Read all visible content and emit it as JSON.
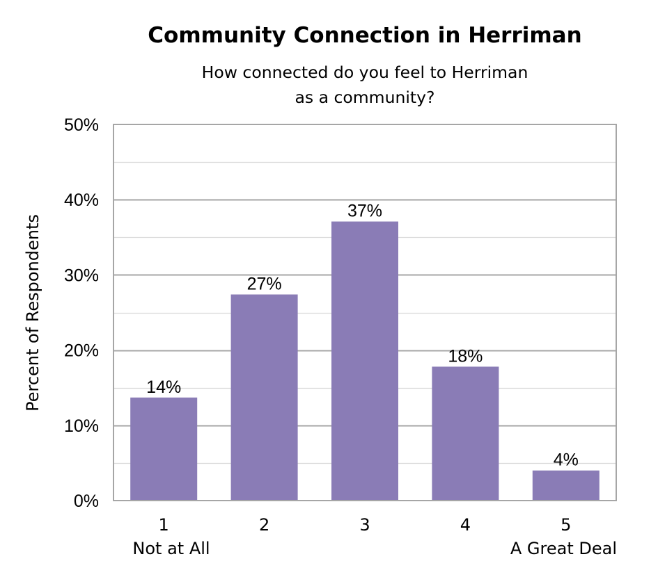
{
  "chart_data": {
    "type": "bar",
    "title": "Community Connection in Herriman",
    "subtitle_lines": [
      "How connected do you feel to Herriman",
      "as a community?"
    ],
    "ylabel": "Percent of Respondents",
    "xlabel": "",
    "categories": [
      "1",
      "2",
      "3",
      "4",
      "5"
    ],
    "category_sublabels": [
      "Not at All",
      "",
      "",
      "",
      "A Great Deal"
    ],
    "values": [
      13.7,
      27.4,
      37.1,
      17.8,
      4.0
    ],
    "data_labels": [
      "14%",
      "27%",
      "37%",
      "18%",
      "4%"
    ],
    "yticks": [
      "0%",
      "10%",
      "20%",
      "30%",
      "40%",
      "50%"
    ],
    "ylim": [
      0,
      50
    ],
    "major_step": 10,
    "minor_step": 5,
    "grid": true,
    "legend": "none",
    "bar_color": "#8a7cb6",
    "grid_color": "#a6a6a6",
    "minor_grid_color": "#d9d9d9",
    "axis_color": "#a6a6a6"
  }
}
